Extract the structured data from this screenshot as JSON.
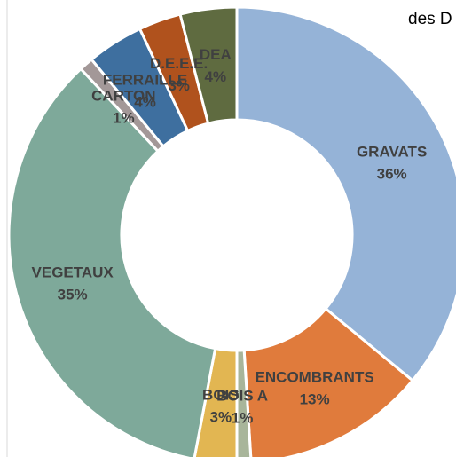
{
  "chart_data": {
    "type": "donut",
    "title": "des D",
    "categories": [
      "GRAVATS",
      "ENCOMBRANTS",
      "BOIS A",
      "BOIS",
      "VEGETAUX",
      "CARTON",
      "FERRAILLE",
      "D.E.E.E.",
      "DEA"
    ],
    "values": [
      36,
      13,
      1,
      3,
      35,
      1,
      4,
      3,
      4
    ],
    "value_labels": [
      "36%",
      "13%",
      "1%",
      "3%",
      "35%",
      "1%",
      "4%",
      "3%",
      "4%"
    ],
    "colors": [
      "#95b3d7",
      "#e07b3c",
      "#a8b59a",
      "#e2b652",
      "#7ea99a",
      "#a39898",
      "#3e6f9f",
      "#b0521d",
      "#5f6b40"
    ]
  }
}
